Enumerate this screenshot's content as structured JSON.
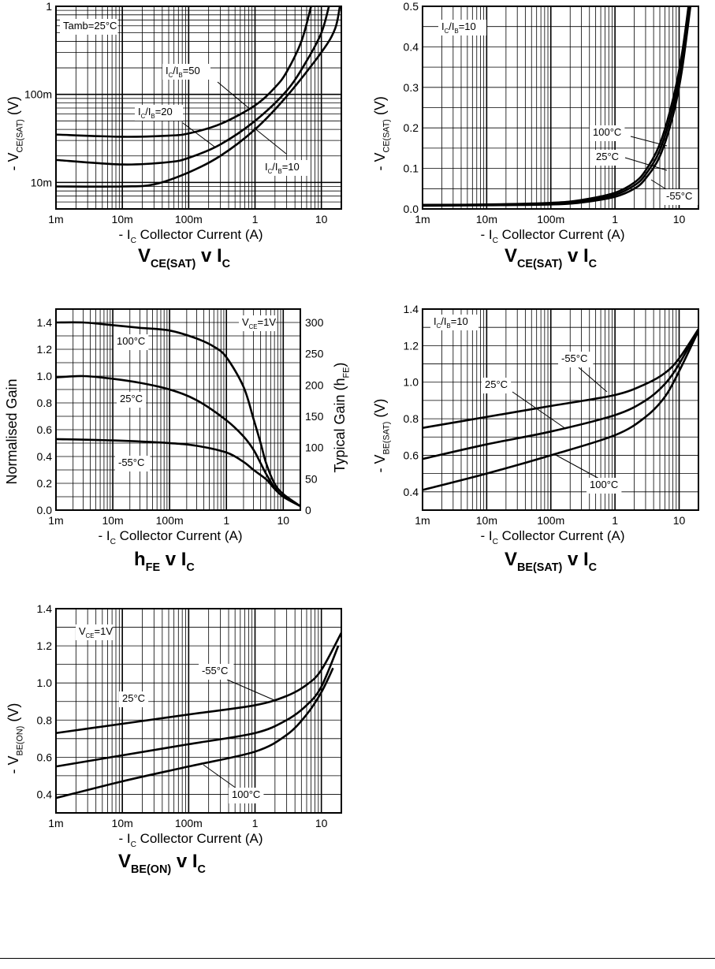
{
  "chart_data": [
    {
      "id": "vcesat-ratio",
      "type": "line",
      "title": {
        "main": "V",
        "sub": "CE(SAT)",
        "mid": " v I",
        "sub2": "C"
      },
      "xlabel": {
        "pre": "- I",
        "sub": "C",
        "post": "   Collector Current (A)"
      },
      "ylabel": {
        "pre": "- V",
        "sub": "CE(SAT)",
        "post": " (V)"
      },
      "xscale": "log",
      "yscale": "log",
      "xlim": [
        0.001,
        20
      ],
      "ylim": [
        0.005,
        1
      ],
      "xticks": [
        {
          "v": 0.001,
          "label": "1m"
        },
        {
          "v": 0.01,
          "label": "10m"
        },
        {
          "v": 0.1,
          "label": "100m"
        },
        {
          "v": 1,
          "label": "1"
        },
        {
          "v": 10,
          "label": "10"
        }
      ],
      "yticks": [
        {
          "v": 0.01,
          "label": "10m"
        },
        {
          "v": 0.1,
          "label": "100m"
        },
        {
          "v": 1,
          "label": "1"
        }
      ],
      "annotation": {
        "text": "Tamb=25°C"
      },
      "series": [
        {
          "name": "IC/IB=50",
          "label": {
            "a": "I",
            "s1": "C",
            "b": "/I",
            "s2": "B",
            "c": "=50"
          },
          "x": [
            0.001,
            0.01,
            0.05,
            0.1,
            0.3,
            1,
            2,
            3,
            5,
            7
          ],
          "y": [
            0.035,
            0.033,
            0.034,
            0.036,
            0.046,
            0.075,
            0.12,
            0.18,
            0.4,
            1
          ]
        },
        {
          "name": "IC/IB=20",
          "label": {
            "a": "I",
            "s1": "C",
            "b": "/I",
            "s2": "B",
            "c": "=20"
          },
          "x": [
            0.001,
            0.01,
            0.05,
            0.1,
            0.3,
            1,
            3,
            6,
            10,
            13
          ],
          "y": [
            0.018,
            0.016,
            0.017,
            0.019,
            0.027,
            0.05,
            0.11,
            0.24,
            0.5,
            1
          ]
        },
        {
          "name": "IC/IB=10",
          "label": {
            "a": "I",
            "s1": "C",
            "b": "/I",
            "s2": "B",
            "c": "=10"
          },
          "x": [
            0.001,
            0.01,
            0.03,
            0.1,
            0.3,
            1,
            3,
            10,
            16,
            19
          ],
          "y": [
            0.009,
            0.009,
            0.0095,
            0.013,
            0.02,
            0.04,
            0.095,
            0.3,
            0.55,
            1
          ]
        }
      ]
    },
    {
      "id": "vcesat-temp",
      "type": "line",
      "title": {
        "main": "V",
        "sub": "CE(SAT)",
        "mid": " v I",
        "sub2": "C"
      },
      "xlabel": {
        "pre": "- I",
        "sub": "C",
        "post": "   Collector Current (A)"
      },
      "ylabel": {
        "pre": "- V",
        "sub": "CE(SAT)",
        "post": " (V)"
      },
      "xscale": "log",
      "yscale": "linear",
      "xlim": [
        0.001,
        20
      ],
      "ylim": [
        0,
        0.5
      ],
      "xticks": [
        {
          "v": 0.001,
          "label": "1m"
        },
        {
          "v": 0.01,
          "label": "10m"
        },
        {
          "v": 0.1,
          "label": "100m"
        },
        {
          "v": 1,
          "label": "1"
        },
        {
          "v": 10,
          "label": "10"
        }
      ],
      "yticks": [
        {
          "v": 0,
          "label": "0.0"
        },
        {
          "v": 0.1,
          "label": "0.1"
        },
        {
          "v": 0.2,
          "label": "0.2"
        },
        {
          "v": 0.3,
          "label": "0.3"
        },
        {
          "v": 0.4,
          "label": "0.4"
        },
        {
          "v": 0.5,
          "label": "0.5"
        }
      ],
      "annotation": {
        "a": "I",
        "s1": "C",
        "b": "/I",
        "s2": "B",
        "c": "=10"
      },
      "series": [
        {
          "name": "100°C",
          "x": [
            0.001,
            0.01,
            0.1,
            0.3,
            1,
            2,
            3,
            5,
            8,
            11,
            14
          ],
          "y": [
            0.01,
            0.011,
            0.015,
            0.022,
            0.04,
            0.065,
            0.095,
            0.16,
            0.27,
            0.38,
            0.5
          ]
        },
        {
          "name": "25°C",
          "x": [
            0.001,
            0.01,
            0.1,
            0.3,
            1,
            2,
            3,
            5,
            8,
            11,
            14.5
          ],
          "y": [
            0.009,
            0.01,
            0.013,
            0.019,
            0.035,
            0.058,
            0.085,
            0.145,
            0.25,
            0.36,
            0.5
          ]
        },
        {
          "name": "-55°C",
          "x": [
            0.001,
            0.01,
            0.1,
            0.3,
            1,
            2,
            3,
            5,
            8,
            11,
            15
          ],
          "y": [
            0.008,
            0.009,
            0.011,
            0.016,
            0.03,
            0.05,
            0.075,
            0.13,
            0.23,
            0.34,
            0.5
          ]
        }
      ]
    },
    {
      "id": "hfe",
      "type": "line",
      "title": {
        "main": "h",
        "sub": "FE",
        "mid": " v I",
        "sub2": "C"
      },
      "xlabel": {
        "pre": "- I",
        "sub": "C",
        "post": "   Collector Current (A)"
      },
      "ylabel": {
        "pre": "Normalised Gain",
        "sub": "",
        "post": ""
      },
      "y2label": {
        "pre": "Typical Gain (h",
        "sub": "FE",
        "post": ")"
      },
      "xscale": "log",
      "yscale": "linear",
      "xlim": [
        0.001,
        20
      ],
      "ylim": [
        0,
        1.5
      ],
      "xticks": [
        {
          "v": 0.001,
          "label": "1m"
        },
        {
          "v": 0.01,
          "label": "10m"
        },
        {
          "v": 0.1,
          "label": "100m"
        },
        {
          "v": 1,
          "label": "1"
        },
        {
          "v": 10,
          "label": "10"
        }
      ],
      "yticks": [
        {
          "v": 0,
          "label": "0.0"
        },
        {
          "v": 0.2,
          "label": "0.2"
        },
        {
          "v": 0.4,
          "label": "0.4"
        },
        {
          "v": 0.6,
          "label": "0.6"
        },
        {
          "v": 0.8,
          "label": "0.8"
        },
        {
          "v": 1.0,
          "label": "1.0"
        },
        {
          "v": 1.2,
          "label": "1.2"
        },
        {
          "v": 1.4,
          "label": "1.4"
        }
      ],
      "y2ticks": [
        {
          "v": 0,
          "label": "0"
        },
        {
          "v": 50,
          "label": "50"
        },
        {
          "v": 100,
          "label": "100"
        },
        {
          "v": 150,
          "label": "150"
        },
        {
          "v": 200,
          "label": "200"
        },
        {
          "v": 250,
          "label": "250"
        },
        {
          "v": 300,
          "label": "300"
        }
      ],
      "y2max_at_norm": [
        300,
        1.4
      ],
      "annotation": {
        "a": "V",
        "s1": "CE",
        "b": "=1V",
        "s2": "",
        "c": ""
      },
      "series": [
        {
          "name": "100°C",
          "x": [
            0.001,
            0.003,
            0.01,
            0.03,
            0.1,
            0.3,
            0.6,
            1,
            2,
            3,
            4,
            5,
            7,
            10,
            20
          ],
          "y": [
            1.4,
            1.4,
            1.38,
            1.36,
            1.34,
            1.28,
            1.22,
            1.14,
            0.92,
            0.68,
            0.5,
            0.35,
            0.2,
            0.12,
            0.03
          ]
        },
        {
          "name": "25°C",
          "x": [
            0.001,
            0.003,
            0.01,
            0.03,
            0.1,
            0.3,
            1,
            2,
            3,
            4,
            5,
            7,
            10,
            20
          ],
          "y": [
            0.99,
            1.0,
            0.98,
            0.95,
            0.9,
            0.82,
            0.67,
            0.55,
            0.45,
            0.35,
            0.27,
            0.17,
            0.1,
            0.03
          ]
        },
        {
          "name": "-55°C",
          "x": [
            0.001,
            0.01,
            0.1,
            0.3,
            1,
            2,
            3,
            5,
            7,
            10,
            20
          ],
          "y": [
            0.53,
            0.52,
            0.5,
            0.48,
            0.43,
            0.36,
            0.3,
            0.23,
            0.16,
            0.1,
            0.03
          ]
        }
      ]
    },
    {
      "id": "vbesat",
      "type": "line",
      "title": {
        "main": "V",
        "sub": "BE(SAT)",
        "mid": " v I",
        "sub2": "C"
      },
      "xlabel": {
        "pre": "- I",
        "sub": "C",
        "post": "   Collector Current (A)"
      },
      "ylabel": {
        "pre": "- V",
        "sub": "BE(SAT)",
        "post": " (V)"
      },
      "xscale": "log",
      "yscale": "linear",
      "xlim": [
        0.001,
        20
      ],
      "ylim": [
        0.3,
        1.4
      ],
      "xticks": [
        {
          "v": 0.001,
          "label": "1m"
        },
        {
          "v": 0.01,
          "label": "10m"
        },
        {
          "v": 0.1,
          "label": "100m"
        },
        {
          "v": 1,
          "label": "1"
        },
        {
          "v": 10,
          "label": "10"
        }
      ],
      "yticks": [
        {
          "v": 0.4,
          "label": "0.4"
        },
        {
          "v": 0.6,
          "label": "0.6"
        },
        {
          "v": 0.8,
          "label": "0.8"
        },
        {
          "v": 1.0,
          "label": "1.0"
        },
        {
          "v": 1.2,
          "label": "1.2"
        },
        {
          "v": 1.4,
          "label": "1.4"
        }
      ],
      "annotation": {
        "a": "I",
        "s1": "C",
        "b": "/I",
        "s2": "B",
        "c": "=10"
      },
      "series": [
        {
          "name": "-55°C",
          "x": [
            0.001,
            0.01,
            0.1,
            1,
            3,
            6,
            10,
            20
          ],
          "y": [
            0.75,
            0.81,
            0.87,
            0.93,
            0.99,
            1.05,
            1.13,
            1.29
          ]
        },
        {
          "name": "25°C",
          "x": [
            0.001,
            0.01,
            0.1,
            1,
            3,
            6,
            10,
            20
          ],
          "y": [
            0.58,
            0.66,
            0.73,
            0.82,
            0.9,
            0.99,
            1.1,
            1.29
          ]
        },
        {
          "name": "100°C",
          "x": [
            0.001,
            0.01,
            0.1,
            1,
            3,
            6,
            10,
            20
          ],
          "y": [
            0.41,
            0.5,
            0.6,
            0.71,
            0.81,
            0.92,
            1.06,
            1.28
          ]
        }
      ]
    },
    {
      "id": "vbeon",
      "type": "line",
      "title": {
        "main": "V",
        "sub": "BE(ON)",
        "mid": " v I",
        "sub2": "C"
      },
      "xlabel": {
        "pre": "- I",
        "sub": "C",
        "post": "   Collector Current (A)"
      },
      "ylabel": {
        "pre": "- V",
        "sub": "BE(ON)",
        "post": " (V)"
      },
      "xscale": "log",
      "yscale": "linear",
      "xlim": [
        0.001,
        20
      ],
      "ylim": [
        0.3,
        1.4
      ],
      "xticks": [
        {
          "v": 0.001,
          "label": "1m"
        },
        {
          "v": 0.01,
          "label": "10m"
        },
        {
          "v": 0.1,
          "label": "100m"
        },
        {
          "v": 1,
          "label": "1"
        },
        {
          "v": 10,
          "label": "10"
        }
      ],
      "yticks": [
        {
          "v": 0.4,
          "label": "0.4"
        },
        {
          "v": 0.6,
          "label": "0.6"
        },
        {
          "v": 0.8,
          "label": "0.8"
        },
        {
          "v": 1.0,
          "label": "1.0"
        },
        {
          "v": 1.2,
          "label": "1.2"
        },
        {
          "v": 1.4,
          "label": "1.4"
        }
      ],
      "annotation": {
        "a": "V",
        "s1": "CE",
        "b": "=1V",
        "s2": "",
        "c": ""
      },
      "series": [
        {
          "name": "-55°C",
          "x": [
            0.001,
            0.01,
            0.1,
            1,
            3,
            6,
            10,
            20
          ],
          "y": [
            0.73,
            0.78,
            0.83,
            0.88,
            0.93,
            0.99,
            1.07,
            1.27
          ]
        },
        {
          "name": "25°C",
          "x": [
            0.001,
            0.01,
            0.1,
            1,
            3,
            6,
            10,
            18
          ],
          "y": [
            0.55,
            0.61,
            0.67,
            0.73,
            0.8,
            0.88,
            0.98,
            1.2
          ]
        },
        {
          "name": "100°C",
          "x": [
            0.001,
            0.01,
            0.1,
            1,
            3,
            6,
            10,
            15
          ],
          "y": [
            0.38,
            0.47,
            0.55,
            0.63,
            0.72,
            0.83,
            0.95,
            1.08
          ]
        }
      ]
    }
  ]
}
